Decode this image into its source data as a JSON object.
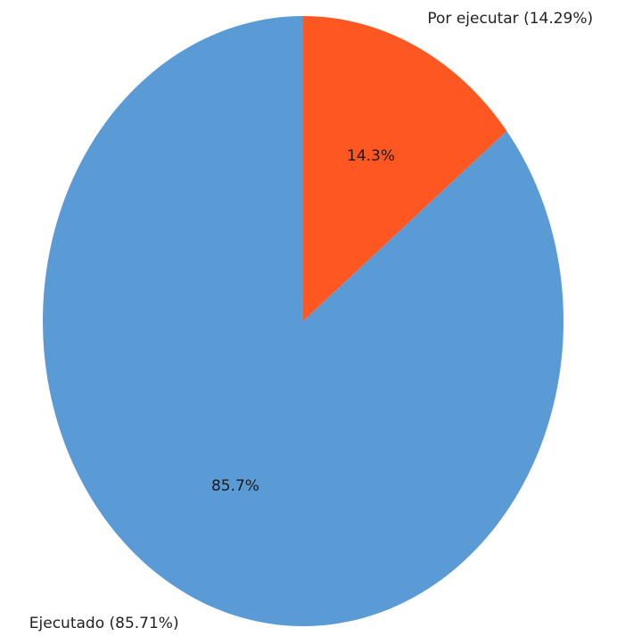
{
  "chart_data": {
    "type": "pie",
    "start_angle_deg": 90,
    "direction": "clockwise",
    "slices": [
      {
        "label": "Por ejecutar (14.29%)",
        "value": 14.29,
        "pct_label": "14.3%",
        "color": "#ff5722"
      },
      {
        "label": "Ejecutado (85.71%)",
        "value": 85.71,
        "pct_label": "85.7%",
        "color": "#5b9bd5"
      }
    ]
  }
}
